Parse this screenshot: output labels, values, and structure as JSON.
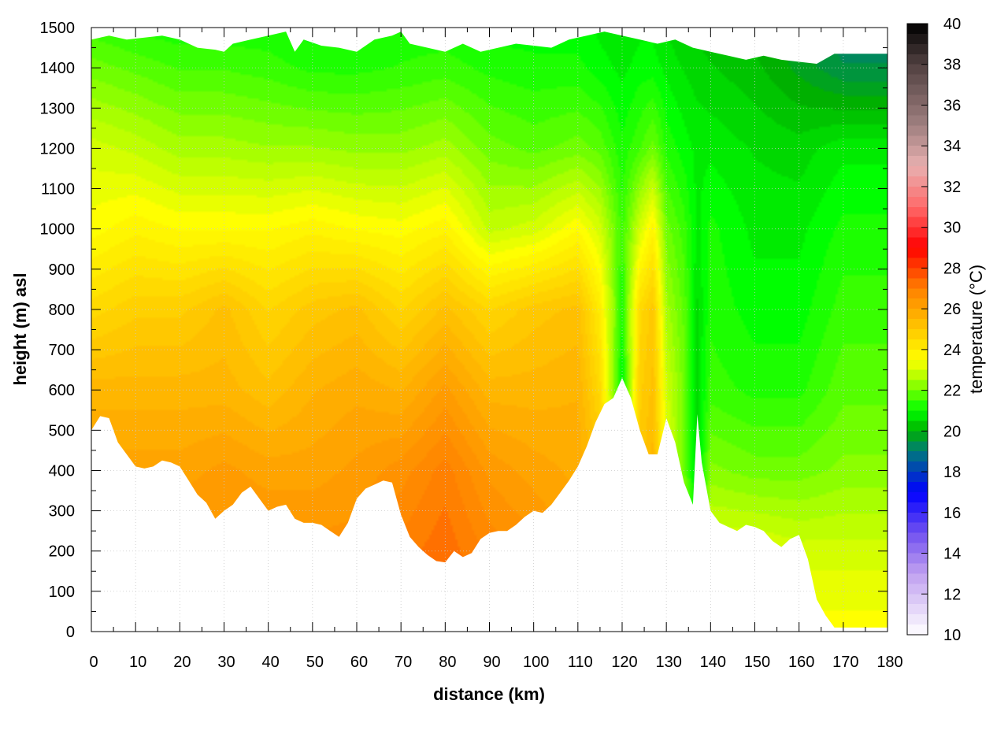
{
  "chart_data": {
    "type": "heatmap",
    "title": "",
    "xlabel": "distance (km)",
    "ylabel": "height (m) asl",
    "colorbar_label": "temperature (°C)",
    "xlim": [
      0,
      180
    ],
    "ylim": [
      0,
      1500
    ],
    "clim": [
      10,
      40
    ],
    "x_ticks": [
      0,
      10,
      20,
      30,
      40,
      50,
      60,
      70,
      80,
      90,
      100,
      110,
      120,
      130,
      140,
      150,
      160,
      170,
      180
    ],
    "y_ticks": [
      0,
      100,
      200,
      300,
      400,
      500,
      600,
      700,
      800,
      900,
      1000,
      1100,
      1200,
      1300,
      1400,
      1500
    ],
    "colorbar_ticks": [
      10,
      12,
      14,
      16,
      18,
      20,
      22,
      24,
      26,
      28,
      30,
      32,
      34,
      36,
      38,
      40
    ],
    "grid": true,
    "colormap": [
      {
        "value": 10,
        "color": "#ffffff"
      },
      {
        "value": 13,
        "color": "#c0a0f0"
      },
      {
        "value": 15,
        "color": "#7050f0"
      },
      {
        "value": 17,
        "color": "#0000ff"
      },
      {
        "value": 19,
        "color": "#007a7a"
      },
      {
        "value": 20,
        "color": "#00b000"
      },
      {
        "value": 21,
        "color": "#00ff00"
      },
      {
        "value": 22.5,
        "color": "#a8ff00"
      },
      {
        "value": 23.5,
        "color": "#ffff00"
      },
      {
        "value": 25,
        "color": "#ffc800"
      },
      {
        "value": 27,
        "color": "#ff8000"
      },
      {
        "value": 29,
        "color": "#ff0000"
      },
      {
        "value": 31,
        "color": "#ff6a6a"
      },
      {
        "value": 33,
        "color": "#e8b0b0"
      },
      {
        "value": 35,
        "color": "#a08080"
      },
      {
        "value": 38,
        "color": "#504040"
      },
      {
        "value": 40,
        "color": "#000000"
      }
    ],
    "terrain": {
      "distance_km": [
        0,
        2,
        4,
        6,
        8,
        10,
        12,
        14,
        16,
        18,
        20,
        22,
        24,
        26,
        28,
        30,
        32,
        34,
        36,
        38,
        40,
        42,
        44,
        46,
        48,
        50,
        52,
        54,
        56,
        58,
        60,
        62,
        64,
        66,
        68,
        70,
        72,
        74,
        76,
        78,
        80,
        82,
        84,
        86,
        88,
        90,
        92,
        94,
        96,
        98,
        100,
        102,
        104,
        106,
        108,
        110,
        112,
        114,
        116,
        118,
        120,
        122,
        124,
        126,
        128,
        130,
        132,
        134,
        136,
        137,
        138,
        140,
        142,
        144,
        146,
        148,
        150,
        152,
        154,
        156,
        158,
        160,
        162,
        164,
        166,
        168,
        170,
        172,
        174,
        176,
        178,
        180
      ],
      "height_m": [
        500,
        535,
        530,
        470,
        440,
        410,
        405,
        410,
        425,
        420,
        410,
        375,
        340,
        320,
        280,
        300,
        315,
        345,
        360,
        330,
        300,
        310,
        315,
        280,
        270,
        270,
        265,
        250,
        235,
        270,
        330,
        355,
        365,
        375,
        370,
        290,
        235,
        210,
        190,
        175,
        172,
        200,
        185,
        195,
        230,
        245,
        250,
        250,
        265,
        285,
        300,
        295,
        315,
        345,
        375,
        410,
        460,
        520,
        565,
        580,
        630,
        580,
        500,
        440,
        440,
        530,
        470,
        370,
        315,
        540,
        420,
        300,
        270,
        260,
        250,
        265,
        260,
        250,
        225,
        210,
        230,
        240,
        180,
        80,
        40,
        10,
        10,
        10,
        10,
        10,
        10,
        10
      ]
    },
    "top_cutoff": {
      "distance_km": [
        0,
        4,
        8,
        12,
        16,
        20,
        24,
        28,
        30,
        32,
        36,
        40,
        44,
        46,
        48,
        52,
        56,
        60,
        64,
        68,
        70,
        72,
        76,
        80,
        84,
        88,
        92,
        96,
        100,
        104,
        108,
        112,
        116,
        120,
        124,
        128,
        132,
        136,
        140,
        144,
        148,
        152,
        156,
        160,
        164,
        168,
        172,
        176,
        180
      ],
      "height_m": [
        1470,
        1480,
        1470,
        1475,
        1480,
        1470,
        1450,
        1445,
        1440,
        1460,
        1470,
        1480,
        1490,
        1440,
        1470,
        1455,
        1450,
        1440,
        1470,
        1480,
        1490,
        1460,
        1450,
        1440,
        1460,
        1440,
        1450,
        1460,
        1455,
        1450,
        1470,
        1480,
        1490,
        1480,
        1470,
        1460,
        1470,
        1450,
        1440,
        1430,
        1420,
        1430,
        1420,
        1415,
        1410,
        1435,
        1435,
        1435,
        1435
      ]
    },
    "temperature_field": {
      "description_points": "profile columns (distance km): temperature at each height (m)",
      "heights_m": [
        0,
        200,
        400,
        600,
        800,
        1000,
        1200,
        1400,
        1500
      ],
      "columns": [
        {
          "x": 0,
          "t": [
            27,
            26.5,
            26,
            25.5,
            24.5,
            23.5,
            23,
            22,
            21.5
          ]
        },
        {
          "x": 10,
          "t": [
            27,
            26.5,
            26,
            25.5,
            24.8,
            23.8,
            22.8,
            21.8,
            21.3
          ]
        },
        {
          "x": 20,
          "t": [
            26.5,
            26.5,
            26,
            25.5,
            24.8,
            23.6,
            22.5,
            21.6,
            21.2
          ]
        },
        {
          "x": 30,
          "t": [
            26.5,
            26.5,
            26.2,
            25.5,
            25.2,
            23.6,
            22.5,
            21.6,
            21.2
          ]
        },
        {
          "x": 40,
          "t": [
            26.5,
            26.5,
            26.0,
            25.2,
            24.6,
            23.6,
            22.4,
            21.5,
            21.2
          ]
        },
        {
          "x": 50,
          "t": [
            26.5,
            26.5,
            26.0,
            25.6,
            25.0,
            23.8,
            22.4,
            21.3,
            21.0
          ]
        },
        {
          "x": 60,
          "t": [
            26.5,
            26.5,
            26.2,
            25.8,
            25.2,
            23.6,
            22.3,
            21.3,
            21.0
          ]
        },
        {
          "x": 70,
          "t": [
            27,
            27,
            26.5,
            25.6,
            24.6,
            23.5,
            22.3,
            21.4,
            21.2
          ]
        },
        {
          "x": 80,
          "t": [
            27.5,
            27.3,
            27,
            26.2,
            25.2,
            23.8,
            22.5,
            21.5,
            21.2
          ]
        },
        {
          "x": 90,
          "t": [
            27,
            26.8,
            26.3,
            25.5,
            24.6,
            22.8,
            22.0,
            21.3,
            21.0
          ]
        },
        {
          "x": 100,
          "t": [
            26.5,
            26.5,
            26.0,
            25.5,
            25.0,
            23.0,
            21.8,
            21.2,
            21.0
          ]
        },
        {
          "x": 110,
          "t": [
            26.0,
            26.0,
            25.8,
            25.6,
            25.2,
            23.6,
            22.0,
            21.2,
            21.0
          ]
        },
        {
          "x": 115,
          "t": [
            25.5,
            25.5,
            25.2,
            24.5,
            24.0,
            23.0,
            21.8,
            21.0,
            20.8
          ]
        },
        {
          "x": 120,
          "t": [
            21.0,
            21.0,
            21.0,
            20.8,
            21.2,
            21.5,
            21.2,
            20.8,
            20.6
          ]
        },
        {
          "x": 124,
          "t": [
            25.0,
            25.0,
            25.0,
            24.8,
            24.5,
            23.0,
            21.6,
            21.0,
            20.8
          ]
        },
        {
          "x": 127,
          "t": [
            25.5,
            25.5,
            25.5,
            25.2,
            25.0,
            23.8,
            22.0,
            21.0,
            20.8
          ]
        },
        {
          "x": 130,
          "t": [
            23.5,
            23.5,
            23.2,
            23.0,
            22.5,
            22.0,
            21.3,
            20.8,
            20.6
          ]
        },
        {
          "x": 134,
          "t": [
            22.5,
            22.5,
            22.0,
            22.0,
            21.8,
            21.5,
            21.0,
            20.6,
            20.4
          ]
        },
        {
          "x": 137,
          "t": [
            20.6,
            20.6,
            20.6,
            20.6,
            20.6,
            20.8,
            20.8,
            20.5,
            20.3
          ]
        },
        {
          "x": 140,
          "t": [
            23.5,
            23.2,
            22.2,
            21.5,
            21.3,
            21.2,
            20.8,
            20.4,
            20.2
          ]
        },
        {
          "x": 150,
          "t": [
            23.5,
            23.2,
            22.0,
            21.3,
            21.0,
            20.8,
            20.6,
            20.2,
            20.0
          ]
        },
        {
          "x": 160,
          "t": [
            23.5,
            23.0,
            22.0,
            21.3,
            21.0,
            20.8,
            20.5,
            19.8,
            19.6
          ]
        },
        {
          "x": 170,
          "t": [
            23.5,
            23.0,
            22.2,
            21.8,
            21.5,
            21.2,
            20.8,
            19.4,
            19.2
          ]
        },
        {
          "x": 180,
          "t": [
            23.5,
            23.0,
            22.2,
            21.8,
            21.5,
            21.2,
            20.8,
            19.4,
            19.2
          ]
        }
      ]
    }
  }
}
